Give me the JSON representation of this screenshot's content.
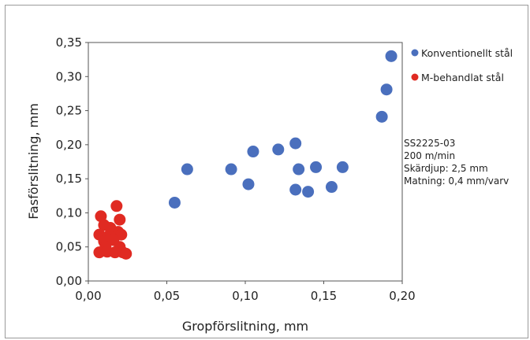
{
  "chart_data": {
    "type": "scatter",
    "xlabel": "Gropförslitning, mm",
    "ylabel": "Fasförslitning, mm",
    "xlim": [
      0,
      0.2
    ],
    "ylim": [
      0,
      0.35
    ],
    "x_ticks": [
      "0,00",
      "0,05",
      "0,10",
      "0,15",
      "0,20"
    ],
    "y_ticks": [
      "0,00",
      "0,05",
      "0,10",
      "0,15",
      "0,20",
      "0,25",
      "0,30",
      "0,35"
    ],
    "grid": false,
    "legend_position": "top-right",
    "series": [
      {
        "name": "Konventionellt stål",
        "color": "#4a6fbd",
        "points": [
          {
            "x": 0.055,
            "y": 0.115
          },
          {
            "x": 0.063,
            "y": 0.164
          },
          {
            "x": 0.091,
            "y": 0.164
          },
          {
            "x": 0.102,
            "y": 0.142
          },
          {
            "x": 0.105,
            "y": 0.19
          },
          {
            "x": 0.121,
            "y": 0.193
          },
          {
            "x": 0.132,
            "y": 0.202
          },
          {
            "x": 0.132,
            "y": 0.134
          },
          {
            "x": 0.134,
            "y": 0.164
          },
          {
            "x": 0.14,
            "y": 0.131
          },
          {
            "x": 0.145,
            "y": 0.167
          },
          {
            "x": 0.155,
            "y": 0.138
          },
          {
            "x": 0.162,
            "y": 0.167
          },
          {
            "x": 0.187,
            "y": 0.241
          },
          {
            "x": 0.19,
            "y": 0.281
          },
          {
            "x": 0.193,
            "y": 0.33
          }
        ]
      },
      {
        "name": "M-behandlat stål",
        "color": "#e02a22",
        "points": [
          {
            "x": 0.008,
            "y": 0.095
          },
          {
            "x": 0.018,
            "y": 0.11
          },
          {
            "x": 0.02,
            "y": 0.09
          },
          {
            "x": 0.01,
            "y": 0.082
          },
          {
            "x": 0.014,
            "y": 0.078
          },
          {
            "x": 0.019,
            "y": 0.072
          },
          {
            "x": 0.007,
            "y": 0.068
          },
          {
            "x": 0.013,
            "y": 0.066
          },
          {
            "x": 0.021,
            "y": 0.068
          },
          {
            "x": 0.01,
            "y": 0.058
          },
          {
            "x": 0.016,
            "y": 0.06
          },
          {
            "x": 0.011,
            "y": 0.05
          },
          {
            "x": 0.02,
            "y": 0.05
          },
          {
            "x": 0.007,
            "y": 0.042
          },
          {
            "x": 0.012,
            "y": 0.043
          },
          {
            "x": 0.017,
            "y": 0.042
          },
          {
            "x": 0.022,
            "y": 0.042
          },
          {
            "x": 0.024,
            "y": 0.04
          }
        ]
      }
    ],
    "annotation_lines": [
      "SS2225-03",
      "200 m/min",
      "Skärdjup: 2,5 mm",
      "Matning: 0,4 mm/varv"
    ]
  }
}
